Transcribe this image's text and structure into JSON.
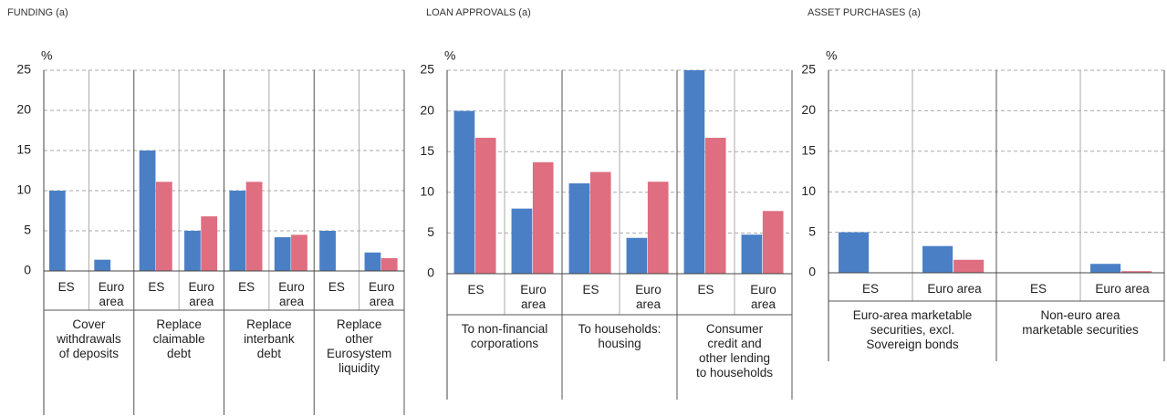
{
  "chart_data": [
    {
      "type": "bar",
      "title": "FUNDING (a)",
      "y_label": "%",
      "categories": [
        "ES",
        "Euro area",
        "ES",
        "Euro area",
        "ES",
        "Euro area",
        "ES",
        "Euro area"
      ],
      "groups": [
        [
          "Cover",
          "withdrawals",
          "of deposits"
        ],
        [
          "Replace",
          "claimable",
          "debt"
        ],
        [
          "Replace",
          "interbank",
          "debt"
        ],
        [
          "Replace",
          "other",
          "Eurosystem",
          "liquidity"
        ]
      ],
      "series": [
        {
          "color": "#4a7fc6",
          "values": [
            10,
            1.4,
            15,
            5,
            10,
            4.2,
            5,
            2.3
          ]
        },
        {
          "color": "#de6e80",
          "values": [
            0,
            0,
            11.1,
            6.8,
            11.1,
            4.5,
            0,
            1.6
          ]
        }
      ],
      "ylim": [
        0,
        25
      ],
      "yticks": [
        0,
        5,
        10,
        15,
        20,
        25
      ],
      "grid": true
    },
    {
      "type": "bar",
      "title": "LOAN APPROVALS (a)",
      "y_label": "%",
      "categories": [
        "ES",
        "Euro area",
        "ES",
        "Euro area",
        "ES",
        "Euro area"
      ],
      "groups": [
        [
          "To non-financial",
          "corporations"
        ],
        [
          "To households:",
          "housing"
        ],
        [
          "Consumer",
          "credit and",
          "other lending",
          "to households"
        ]
      ],
      "series": [
        {
          "color": "#4a7fc6",
          "values": [
            20,
            8,
            11.1,
            4.4,
            25,
            4.8
          ]
        },
        {
          "color": "#de6e80",
          "values": [
            16.7,
            13.7,
            12.5,
            11.3,
            16.7,
            7.7
          ]
        }
      ],
      "ylim": [
        0,
        25
      ],
      "yticks": [
        0,
        5,
        10,
        15,
        20,
        25
      ],
      "grid": true
    },
    {
      "type": "bar",
      "title": "ASSET PURCHASES (a)",
      "y_label": "%",
      "categories": [
        "ES",
        "Euro area",
        "ES",
        "Euro area"
      ],
      "groups": [
        [
          "Euro-area marketable",
          "securities, excl.",
          "Sovereign bonds"
        ],
        [
          "Non-euro area",
          "marketable securities"
        ]
      ],
      "series": [
        {
          "color": "#4a7fc6",
          "values": [
            5,
            3.3,
            0,
            1.1
          ]
        },
        {
          "color": "#de6e80",
          "values": [
            0,
            1.6,
            0,
            0.2
          ]
        }
      ],
      "ylim": [
        0,
        25
      ],
      "yticks": [
        0,
        5,
        10,
        15,
        20,
        25
      ],
      "grid": true
    }
  ]
}
